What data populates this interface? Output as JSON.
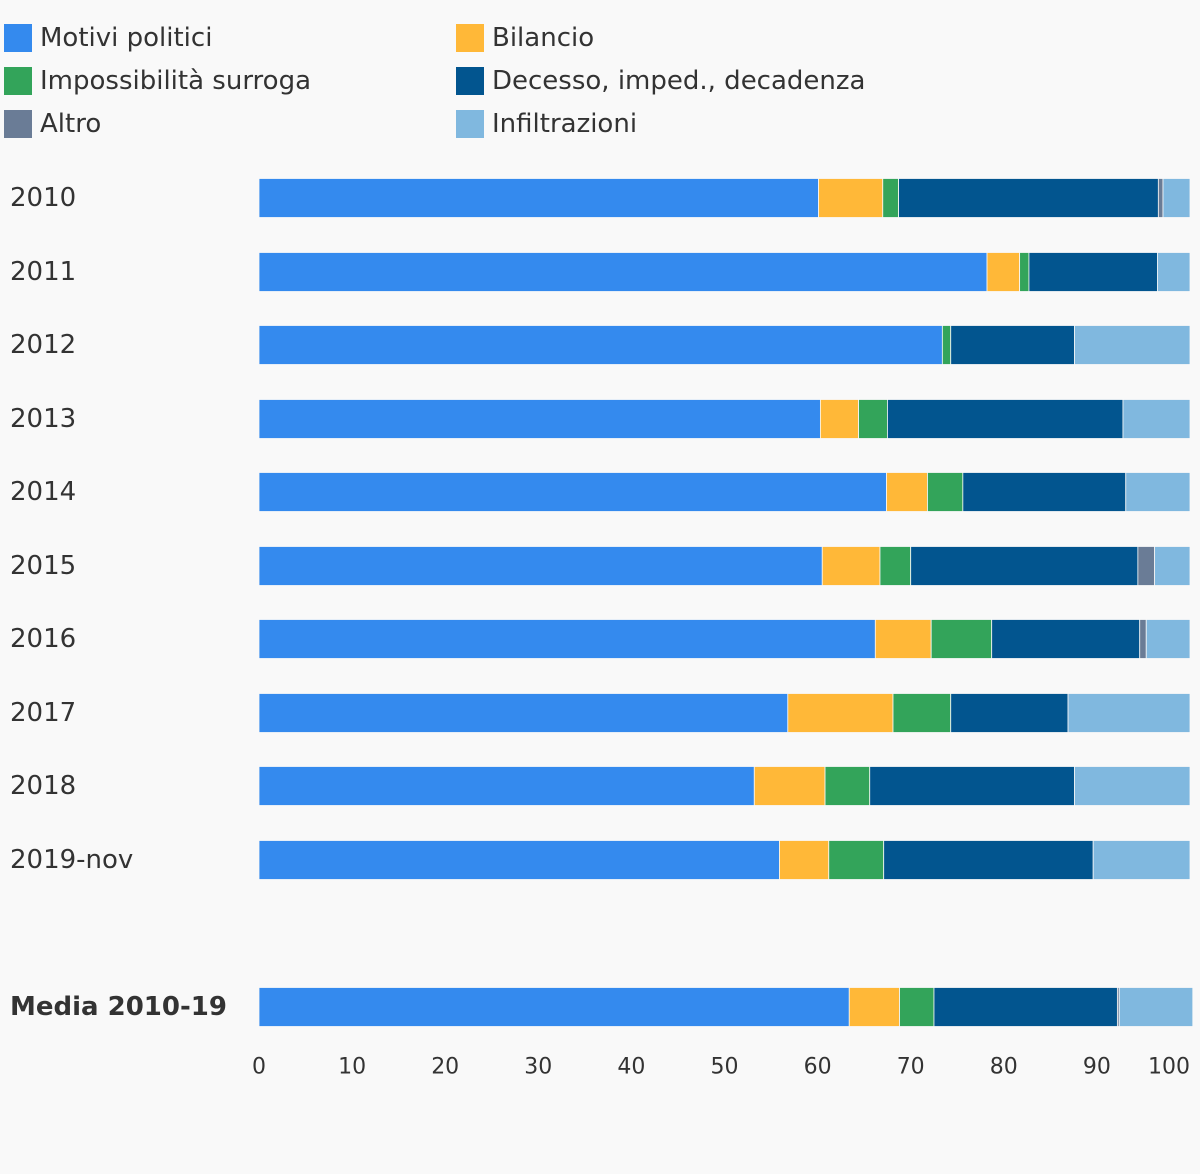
{
  "chart_data": {
    "type": "bar",
    "orientation": "horizontal",
    "stacked": true,
    "legend_position": "top",
    "grid": false,
    "xlim": [
      0,
      100
    ],
    "xticks": [
      "0",
      "10",
      "20",
      "30",
      "40",
      "50",
      "60",
      "70",
      "80",
      "90",
      "100"
    ],
    "categories": [
      "2010",
      "2011",
      "2012",
      "2013",
      "2014",
      "2015",
      "2016",
      "2017",
      "2018",
      "2019-nov",
      "Media 2010-19"
    ],
    "emphasized_categories": [
      "Media 2010-19"
    ],
    "series": [
      {
        "name": "Motivi politici",
        "color": "#348aee",
        "values": [
          60.1,
          78.2,
          73.4,
          60.3,
          67.4,
          60.5,
          66.2,
          56.8,
          53.2,
          55.9,
          63.4
        ]
      },
      {
        "name": "Bilancio",
        "color": "#ffb838",
        "values": [
          6.9,
          3.5,
          0.0,
          4.1,
          4.4,
          6.2,
          6.0,
          11.3,
          7.6,
          5.3,
          5.4
        ]
      },
      {
        "name": "Impossibilità surroga",
        "color": "#33a45a",
        "values": [
          1.7,
          1.0,
          0.9,
          3.1,
          3.8,
          3.3,
          6.5,
          6.2,
          4.8,
          5.9,
          3.7
        ]
      },
      {
        "name": "Decesso, imped., decadenza",
        "color": "#02558f",
        "values": [
          27.9,
          13.8,
          13.3,
          25.3,
          17.5,
          24.4,
          15.9,
          12.6,
          22.0,
          22.5,
          19.7
        ]
      },
      {
        "name": "Altro",
        "color": "#6a7c96",
        "values": [
          0.5,
          0.0,
          0.0,
          0.0,
          0.0,
          1.8,
          0.7,
          0.0,
          0.0,
          0.0,
          0.2
        ]
      },
      {
        "name": "Infiltrazioni",
        "color": "#80b8df",
        "values": [
          2.9,
          3.5,
          12.4,
          7.2,
          6.9,
          3.8,
          4.7,
          13.1,
          12.4,
          10.4,
          7.9
        ]
      }
    ]
  }
}
